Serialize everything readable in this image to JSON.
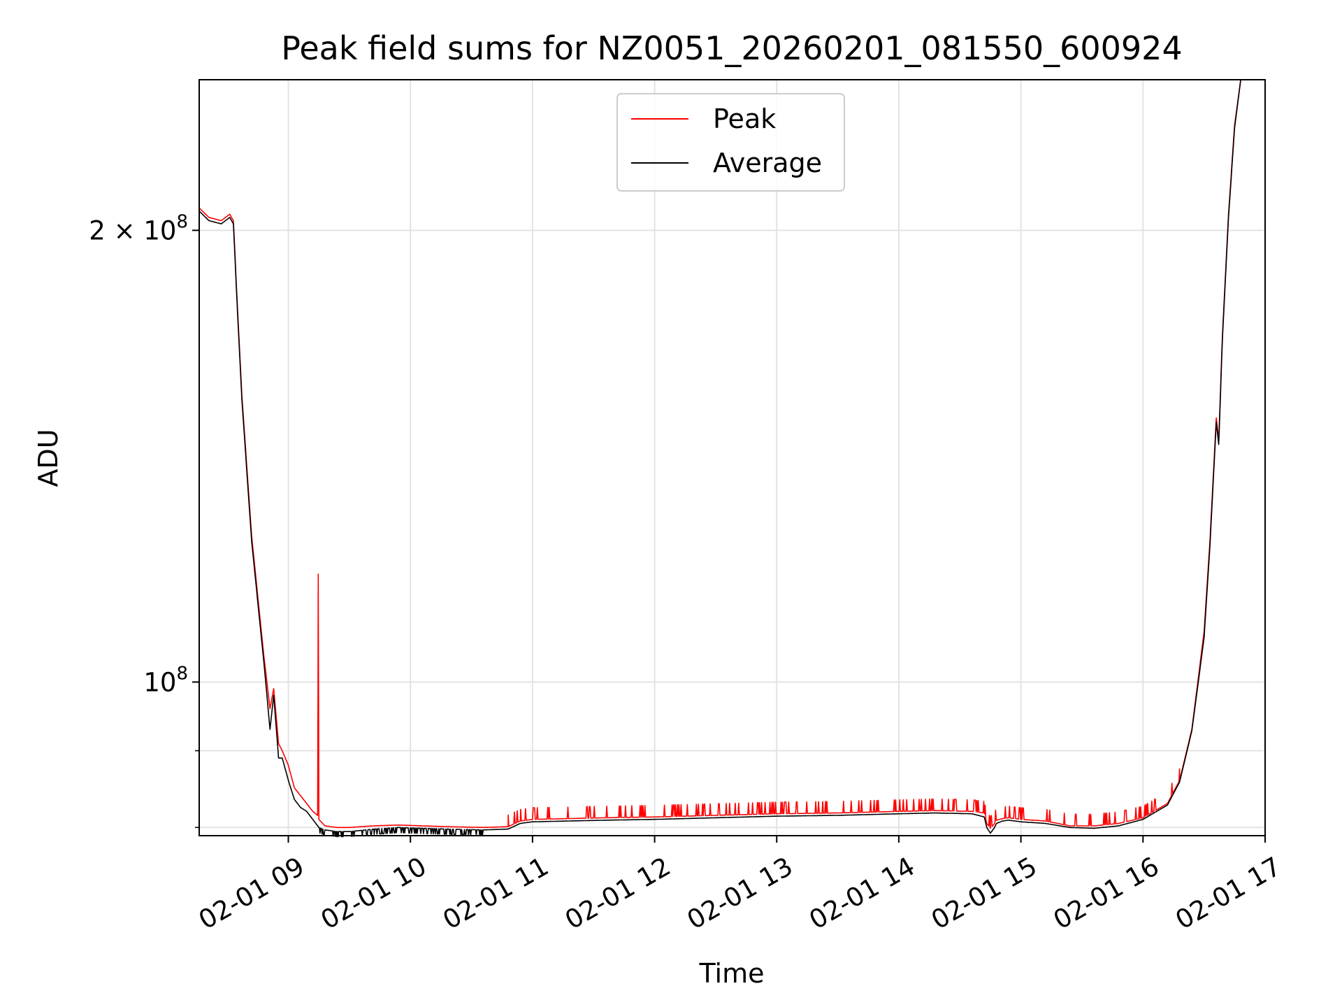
{
  "chart_data": {
    "type": "line",
    "title": "Peak field sums for NZ0051_20260201_081550_600924",
    "xlabel": "Time",
    "ylabel": "ADU",
    "x_unit": "hours since 2026-02-01 00:00",
    "xlim": [
      8.27,
      17.0
    ],
    "ylim": [
      79000000,
      252000000
    ],
    "y_scale": "log",
    "grid": true,
    "legend_position": "upper center",
    "x_ticks": [
      {
        "value": 9,
        "label": "02-01 09"
      },
      {
        "value": 10,
        "label": "02-01 10"
      },
      {
        "value": 11,
        "label": "02-01 11"
      },
      {
        "value": 12,
        "label": "02-01 12"
      },
      {
        "value": 13,
        "label": "02-01 13"
      },
      {
        "value": 14,
        "label": "02-01 14"
      },
      {
        "value": 15,
        "label": "02-01 15"
      },
      {
        "value": 16,
        "label": "02-01 16"
      },
      {
        "value": 17,
        "label": "02-01 17"
      }
    ],
    "y_ticks_major": [
      {
        "value": 100000000,
        "base": "10",
        "exp": "8",
        "coef": ""
      },
      {
        "value": 200000000,
        "base": "10",
        "exp": "8",
        "coef": "2 × "
      }
    ],
    "y_ticks_minor": [
      90000000,
      80000000
    ],
    "series": [
      {
        "name": "Peak",
        "color": "#ff0000",
        "x": [
          8.27,
          8.35,
          8.45,
          8.52,
          8.55,
          8.58,
          8.62,
          8.7,
          8.8,
          8.85,
          8.88,
          8.92,
          8.95,
          9.0,
          9.05,
          9.1,
          9.15,
          9.2,
          9.24,
          9.245,
          9.25,
          9.3,
          9.4,
          9.5,
          9.7,
          9.9,
          10.1,
          10.3,
          10.6,
          10.8,
          10.9,
          11.0,
          11.3,
          11.6,
          12.0,
          12.5,
          13.0,
          13.5,
          14.0,
          14.3,
          14.6,
          14.7,
          14.72,
          14.75,
          14.78,
          14.8,
          14.85,
          14.9,
          15.0,
          15.2,
          15.4,
          15.6,
          15.8,
          16.0,
          16.2,
          16.3,
          16.4,
          16.5,
          16.55,
          16.6,
          16.62,
          16.65,
          16.7,
          16.75,
          16.8
        ],
        "y": [
          207000000,
          204000000,
          203000000,
          205000000,
          203000000,
          180000000,
          155000000,
          125000000,
          104000000,
          96000000,
          99000000,
          91000000,
          90000000,
          88000000,
          85000000,
          84000000,
          83000000,
          82000000,
          81500000,
          118000000,
          81000000,
          80200000,
          80000000,
          80000000,
          80200000,
          80300000,
          80200000,
          80100000,
          80000000,
          80100000,
          80800000,
          81000000,
          81100000,
          81200000,
          81300000,
          81500000,
          81700000,
          81800000,
          82000000,
          82100000,
          82000000,
          81800000,
          80500000,
          79900000,
          80400000,
          80900000,
          81100000,
          81200000,
          81000000,
          80800000,
          80200000,
          80200000,
          80500000,
          81200000,
          83000000,
          86000000,
          93000000,
          108000000,
          125000000,
          150000000,
          145000000,
          170000000,
          205000000,
          235000000,
          252000000
        ]
      },
      {
        "name": "Average",
        "color": "#000000",
        "x": [
          8.27,
          8.35,
          8.45,
          8.52,
          8.55,
          8.58,
          8.62,
          8.7,
          8.8,
          8.85,
          8.88,
          8.92,
          8.95,
          9.0,
          9.05,
          9.1,
          9.15,
          9.2,
          9.25,
          9.3,
          9.4,
          9.5,
          9.7,
          9.9,
          10.1,
          10.3,
          10.6,
          10.8,
          10.9,
          11.0,
          11.3,
          11.6,
          12.0,
          12.5,
          13.0,
          13.5,
          14.0,
          14.3,
          14.6,
          14.7,
          14.72,
          14.75,
          14.78,
          14.8,
          14.85,
          14.9,
          15.0,
          15.2,
          15.4,
          15.6,
          15.8,
          16.0,
          16.2,
          16.3,
          16.4,
          16.5,
          16.55,
          16.6,
          16.62,
          16.65,
          16.7,
          16.75,
          16.8
        ],
        "y": [
          206000000,
          203000000,
          202000000,
          204000000,
          202000000,
          179000000,
          154000000,
          124000000,
          103000000,
          93000000,
          98000000,
          89000000,
          89000000,
          86000000,
          83500000,
          82500000,
          82000000,
          81000000,
          80000000,
          79700000,
          79500000,
          79500000,
          79800000,
          80000000,
          79900000,
          79800000,
          79700000,
          79800000,
          80500000,
          80700000,
          80800000,
          80900000,
          81000000,
          81200000,
          81400000,
          81500000,
          81700000,
          81800000,
          81700000,
          81300000,
          80000000,
          79300000,
          79900000,
          80500000,
          80800000,
          80900000,
          80700000,
          80500000,
          80000000,
          79900000,
          80200000,
          81000000,
          82800000,
          85800000,
          92800000,
          107000000,
          124000000,
          149000000,
          144000000,
          169000000,
          204000000,
          234000000,
          252000000
        ]
      }
    ]
  }
}
